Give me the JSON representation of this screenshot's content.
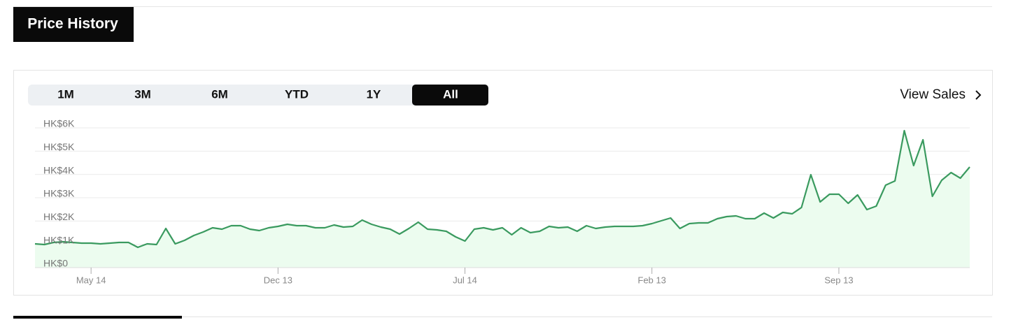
{
  "header": {
    "title": "Price History"
  },
  "tabs": [
    "1M",
    "3M",
    "6M",
    "YTD",
    "1Y",
    "All"
  ],
  "active_tab": 5,
  "view_sales": "View Sales",
  "chart_data": {
    "type": "line",
    "categories": [
      null,
      null,
      null,
      null,
      null,
      null,
      "May 14",
      null,
      null,
      null,
      null,
      null,
      null,
      null,
      null,
      null,
      null,
      null,
      null,
      null,
      null,
      null,
      null,
      null,
      null,
      null,
      "Dec 13",
      null,
      null,
      null,
      null,
      null,
      null,
      null,
      null,
      null,
      null,
      null,
      null,
      null,
      null,
      null,
      null,
      null,
      null,
      null,
      "Jul 14",
      null,
      null,
      null,
      null,
      null,
      null,
      null,
      null,
      null,
      null,
      null,
      null,
      null,
      null,
      null,
      null,
      null,
      null,
      null,
      "Feb 13",
      null,
      null,
      null,
      null,
      null,
      null,
      null,
      null,
      null,
      null,
      null,
      null,
      null,
      null,
      null,
      null,
      null,
      null,
      null,
      "Sep 13",
      null,
      null,
      null,
      null,
      null,
      null,
      null,
      null,
      null,
      null,
      null,
      null,
      null,
      null
    ],
    "values": [
      1020,
      990,
      1080,
      1110,
      1080,
      1050,
      1050,
      1020,
      1050,
      1080,
      1080,
      870,
      1020,
      990,
      1680,
      1020,
      1170,
      1380,
      1530,
      1710,
      1650,
      1800,
      1800,
      1650,
      1590,
      1710,
      1770,
      1860,
      1800,
      1800,
      1710,
      1710,
      1830,
      1740,
      1770,
      2040,
      1860,
      1740,
      1650,
      1440,
      1680,
      1950,
      1650,
      1620,
      1560,
      1320,
      1140,
      1650,
      1710,
      1620,
      1710,
      1410,
      1710,
      1500,
      1560,
      1770,
      1710,
      1740,
      1560,
      1800,
      1680,
      1740,
      1770,
      1770,
      1770,
      1800,
      1890,
      2010,
      2130,
      1680,
      1890,
      1920,
      1920,
      2100,
      2190,
      2220,
      2100,
      2100,
      2340,
      2130,
      2370,
      2310,
      2580,
      3990,
      2820,
      3150,
      3150,
      2760,
      3120,
      2490,
      2640,
      3540,
      3720,
      5880,
      4380,
      5490,
      3060,
      3750,
      4080,
      3840,
      4320
    ],
    "color": "#3a9a5f",
    "fill_color": "#ecfcef",
    "ylim": [
      0,
      6000
    ],
    "yticks": [
      {
        "value": 0,
        "label": "HK$0"
      },
      {
        "value": 1000,
        "label": "HK$1K"
      },
      {
        "value": 2000,
        "label": "HK$2K"
      },
      {
        "value": 3000,
        "label": "HK$3K"
      },
      {
        "value": 4000,
        "label": "HK$4K"
      },
      {
        "value": 5000,
        "label": "HK$5K"
      },
      {
        "value": 6000,
        "label": "HK$6K"
      }
    ],
    "grid": true
  }
}
